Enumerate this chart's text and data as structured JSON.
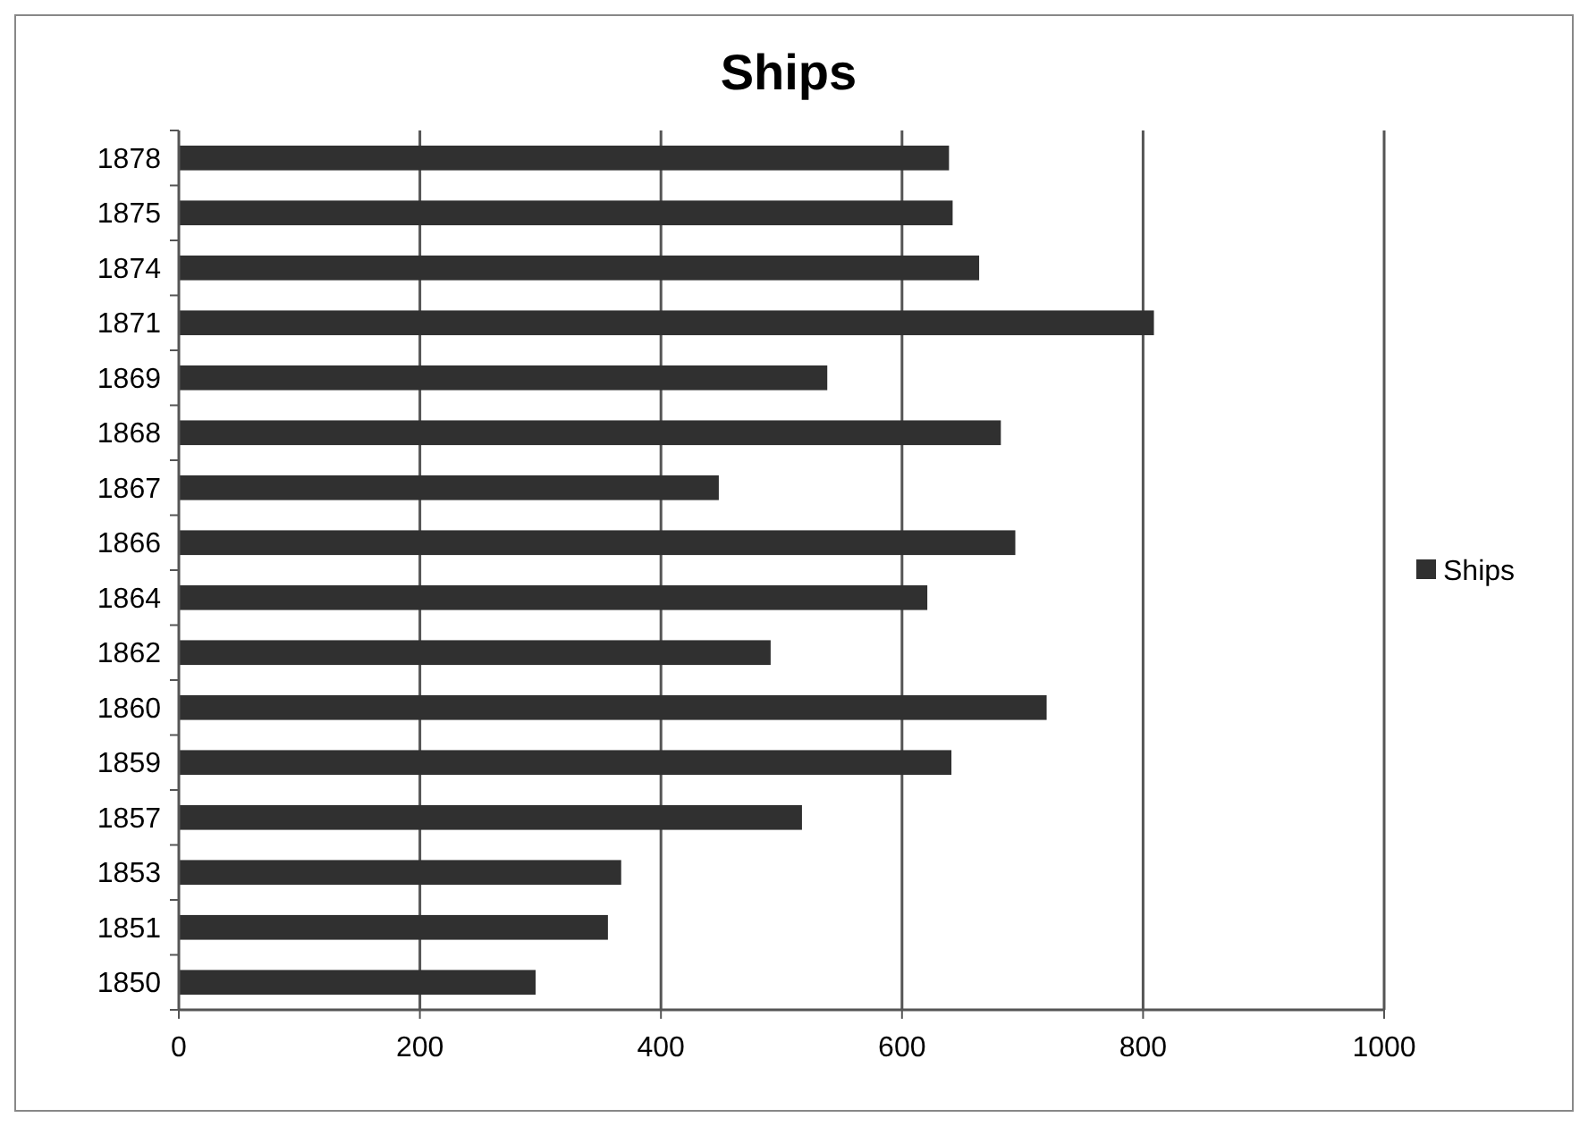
{
  "chart_data": {
    "type": "bar",
    "orientation": "horizontal",
    "title": "Ships",
    "categories": [
      "1878",
      "1875",
      "1874",
      "1871",
      "1869",
      "1868",
      "1867",
      "1866",
      "1864",
      "1862",
      "1860",
      "1859",
      "1857",
      "1853",
      "1851",
      "1850"
    ],
    "series": [
      {
        "name": "Ships",
        "color": "#303030",
        "values": [
          639,
          642,
          664,
          809,
          538,
          682,
          448,
          694,
          621,
          491,
          720,
          641,
          517,
          367,
          356,
          296
        ]
      }
    ],
    "xlim": [
      0,
      1000
    ],
    "xticks": [
      0,
      200,
      400,
      600,
      800,
      1000
    ],
    "grid": "x",
    "legend": "right"
  }
}
